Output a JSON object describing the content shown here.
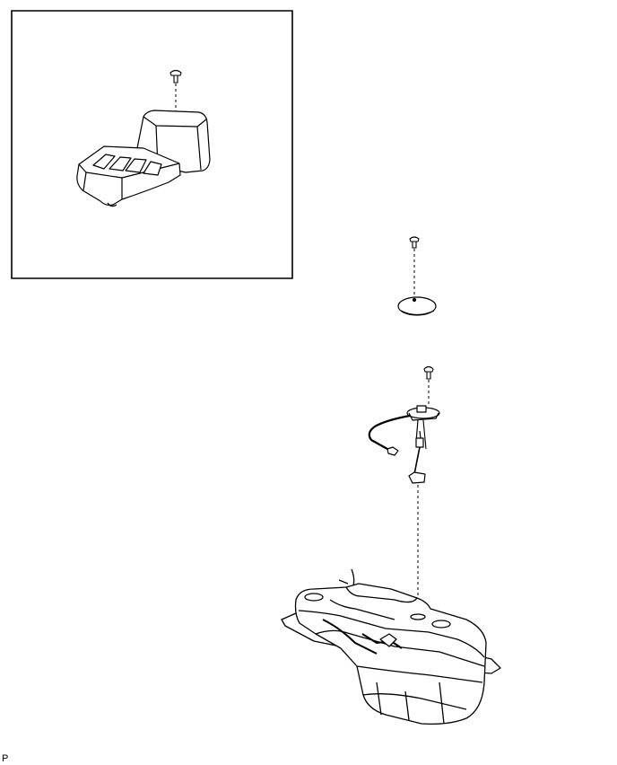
{
  "figure": {
    "code": "P"
  }
}
